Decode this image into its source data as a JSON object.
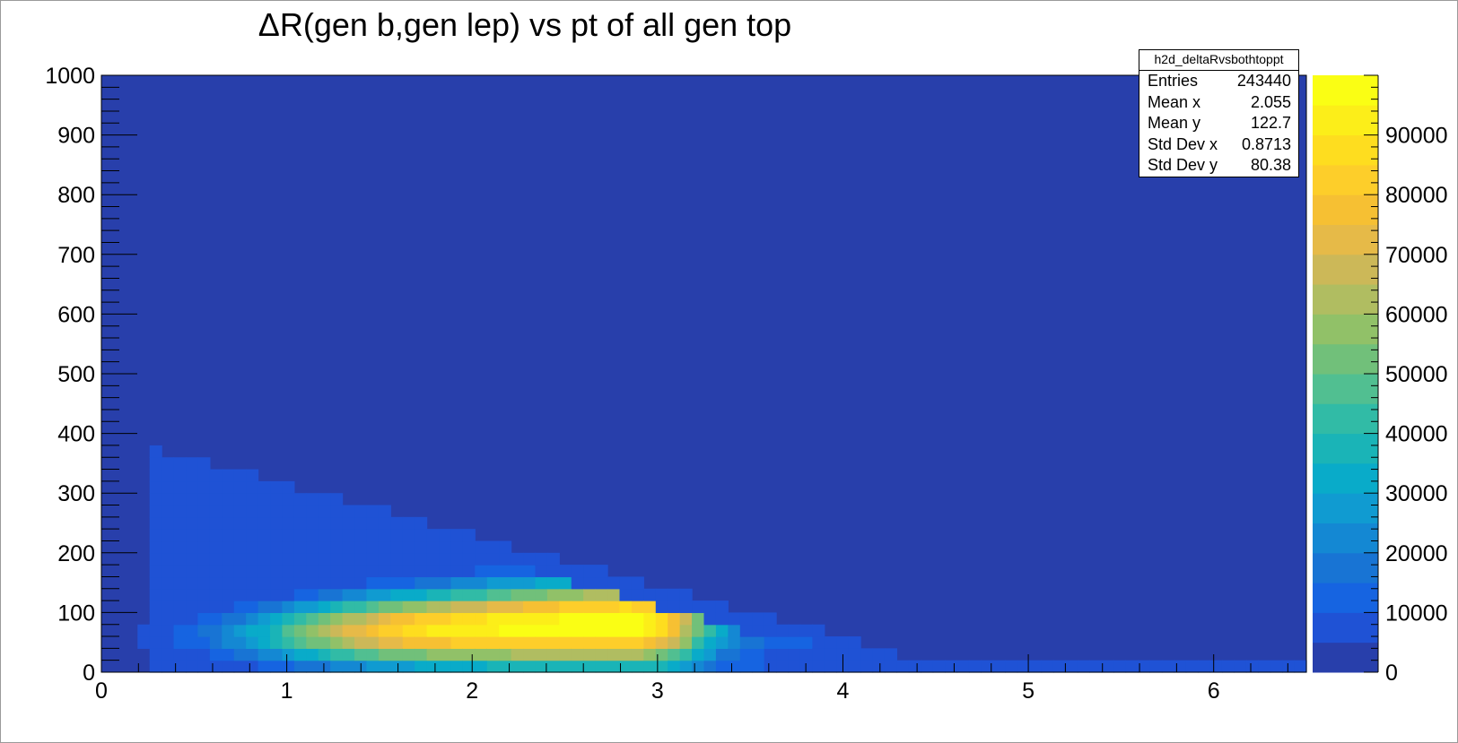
{
  "chart_data": {
    "type": "heatmap",
    "title": "ΔR(gen b,gen lep) vs pt of all gen top",
    "xlabel": "",
    "ylabel": "",
    "xlim": [
      0,
      6.5
    ],
    "ylim": [
      0,
      1000
    ],
    "x_ticks": [
      "0",
      "1",
      "2",
      "3",
      "4",
      "5",
      "6"
    ],
    "y_ticks": [
      "0",
      "100",
      "200",
      "300",
      "400",
      "500",
      "600",
      "700",
      "800",
      "900",
      "1000"
    ],
    "bins": {
      "x_count": 100,
      "x_width": 0.065,
      "y_count": 50,
      "y_width": 20
    },
    "z_max": 100000,
    "colorbar_ticks": [
      "0",
      "10000",
      "20000",
      "30000",
      "40000",
      "50000",
      "60000",
      "70000",
      "80000",
      "90000"
    ],
    "palette": [
      "#283fab",
      "#1f52d5",
      "#1664e1",
      "#1874d4",
      "#1488d3",
      "#109bd1",
      "#09abc9",
      "#1ab4b7",
      "#31bba6",
      "#51bf91",
      "#71c07a",
      "#91c168",
      "#b0bd61",
      "#ccb858",
      "#e6ba48",
      "#f6c033",
      "#fdce2a",
      "#fedd1f",
      "#fcee19",
      "#fafe14"
    ],
    "grid": false,
    "stats": {
      "name": "h2d_deltaRvsbothtoppt",
      "rows": [
        {
          "label": "Entries",
          "value": "243440"
        },
        {
          "label": "Mean x",
          "value": "2.055"
        },
        {
          "label": "Mean y",
          "value": "122.7"
        },
        {
          "label": "Std Dev x",
          "value": "0.8713"
        },
        {
          "label": "Std Dev y",
          "value": "80.38"
        }
      ]
    }
  }
}
